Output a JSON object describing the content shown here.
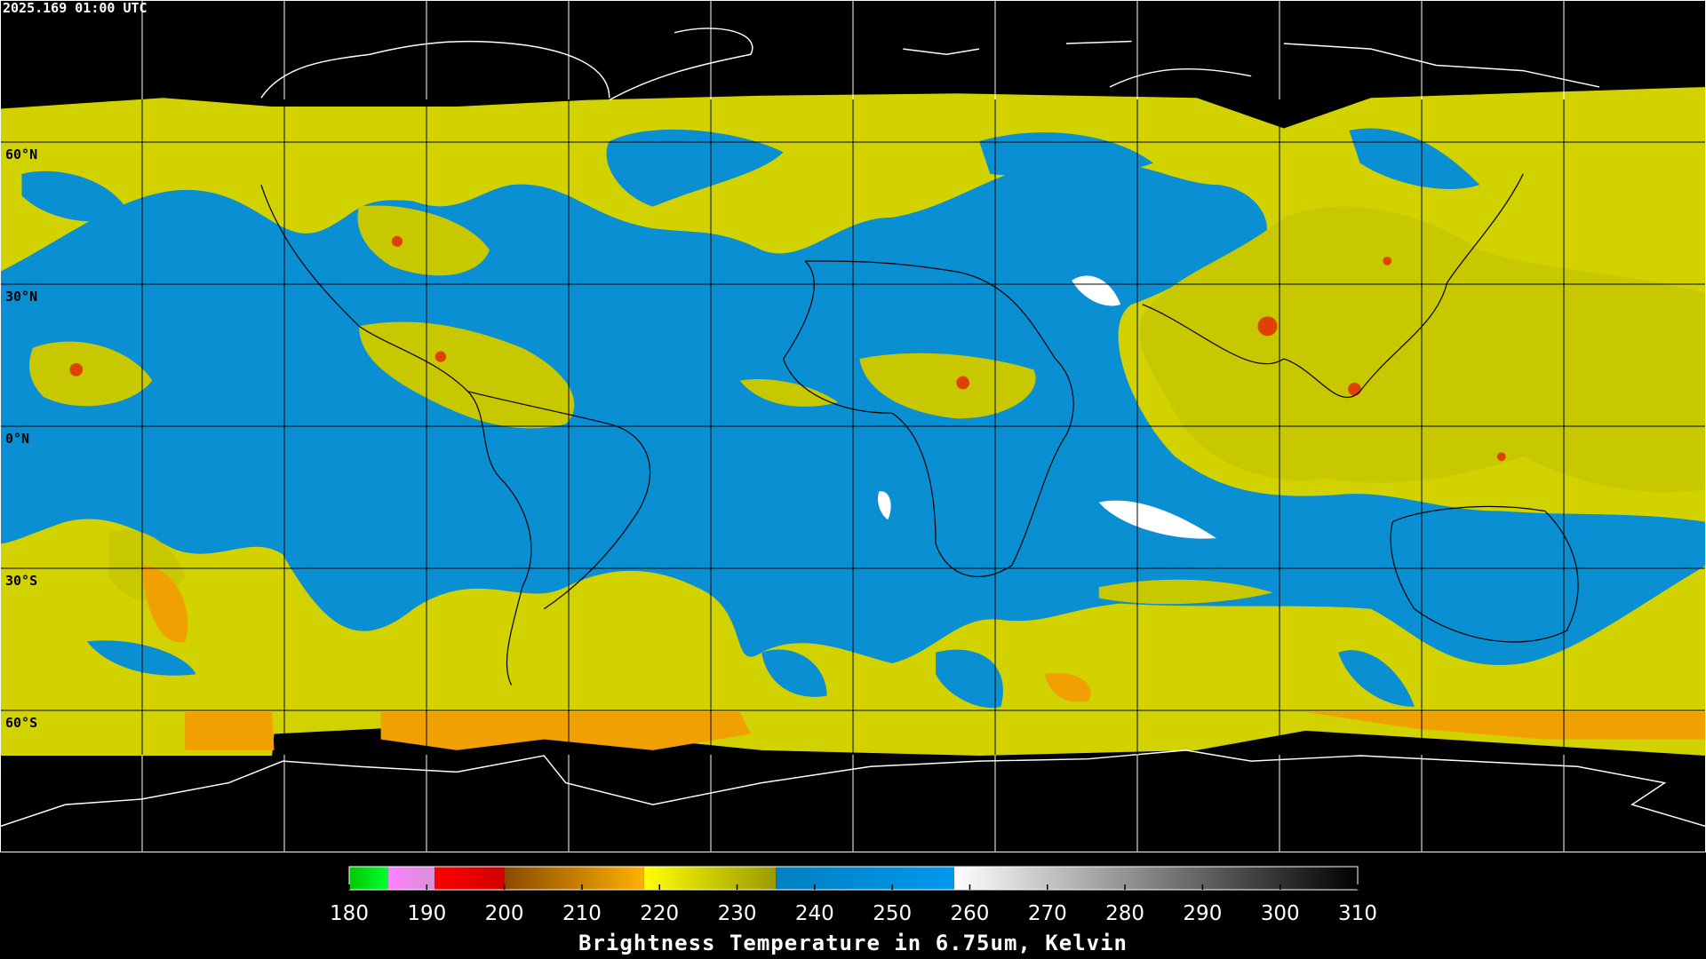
{
  "timestamp": "2025.169 01:00 UTC",
  "lat_labels": [
    "60°N",
    "30°N",
    "0°N",
    "30°S",
    "60°S"
  ],
  "colorbar": {
    "label": "Brightness Temperature in 6.75um, Kelvin",
    "range": [
      180,
      310
    ],
    "ticks": [
      180,
      190,
      200,
      210,
      220,
      230,
      240,
      250,
      260,
      270,
      280,
      290,
      300,
      310
    ],
    "segments": [
      {
        "from": 180,
        "to": 185,
        "colors": [
          "#00c800",
          "#00ff30"
        ]
      },
      {
        "from": 185,
        "to": 191,
        "colors": [
          "#ff80ff",
          "#d890d8"
        ]
      },
      {
        "from": 191,
        "to": 200,
        "colors": [
          "#ff0000",
          "#d00000"
        ]
      },
      {
        "from": 200,
        "to": 218,
        "colors": [
          "#8a4a00",
          "#ffb000"
        ]
      },
      {
        "from": 218,
        "to": 235,
        "colors": [
          "#ffff00",
          "#9a9a00"
        ]
      },
      {
        "from": 235,
        "to": 258,
        "colors": [
          "#0080c0",
          "#0098f0"
        ]
      },
      {
        "from": 258,
        "to": 310,
        "colors": [
          "#ffffff",
          "#000000"
        ]
      }
    ]
  }
}
